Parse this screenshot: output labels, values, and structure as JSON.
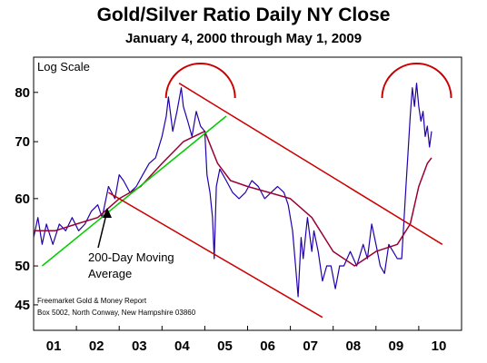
{
  "chart_data": {
    "type": "line",
    "title": "Gold/Silver Ratio Daily NY Close",
    "subtitle": "January 4, 2000 through May 1, 2009",
    "scale_label": "Log Scale",
    "y_scale": "log",
    "ylim": [
      42,
      88
    ],
    "y_ticks": [
      45,
      50,
      60,
      70,
      80
    ],
    "xlim": [
      2000.0,
      2010.0
    ],
    "x_ticks": [
      {
        "label": "01",
        "x": 2001.0
      },
      {
        "label": "02",
        "x": 2002.0
      },
      {
        "label": "03",
        "x": 2003.0
      },
      {
        "label": "04",
        "x": 2004.0
      },
      {
        "label": "05",
        "x": 2005.0
      },
      {
        "label": "06",
        "x": 2006.0
      },
      {
        "label": "07",
        "x": 2007.0
      },
      {
        "label": "08",
        "x": 2008.0
      },
      {
        "label": "09",
        "x": 2009.0
      },
      {
        "label": "10",
        "x": 2010.0
      }
    ],
    "grid": false,
    "series": [
      {
        "role": "ratio",
        "color": "#2200aa",
        "points": [
          [
            2000.0,
            54
          ],
          [
            2000.1,
            57
          ],
          [
            2000.2,
            53
          ],
          [
            2000.3,
            56
          ],
          [
            2000.45,
            53
          ],
          [
            2000.6,
            56
          ],
          [
            2000.75,
            55
          ],
          [
            2000.9,
            57
          ],
          [
            2001.05,
            55
          ],
          [
            2001.2,
            56
          ],
          [
            2001.35,
            58
          ],
          [
            2001.5,
            59
          ],
          [
            2001.6,
            57
          ],
          [
            2001.75,
            62
          ],
          [
            2001.9,
            60
          ],
          [
            2002.0,
            64
          ],
          [
            2002.1,
            63
          ],
          [
            2002.25,
            61
          ],
          [
            2002.4,
            62
          ],
          [
            2002.55,
            64
          ],
          [
            2002.7,
            66
          ],
          [
            2002.85,
            67
          ],
          [
            2003.0,
            71
          ],
          [
            2003.1,
            75
          ],
          [
            2003.15,
            79
          ],
          [
            2003.25,
            72
          ],
          [
            2003.35,
            76
          ],
          [
            2003.45,
            81
          ],
          [
            2003.5,
            77
          ],
          [
            2003.6,
            74
          ],
          [
            2003.7,
            71
          ],
          [
            2003.8,
            76
          ],
          [
            2003.9,
            73
          ],
          [
            2004.0,
            72
          ],
          [
            2004.05,
            64
          ],
          [
            2004.12,
            61
          ],
          [
            2004.18,
            57
          ],
          [
            2004.22,
            51
          ],
          [
            2004.27,
            62
          ],
          [
            2004.35,
            65
          ],
          [
            2004.5,
            63
          ],
          [
            2004.65,
            61
          ],
          [
            2004.8,
            60
          ],
          [
            2004.95,
            61
          ],
          [
            2005.1,
            63
          ],
          [
            2005.25,
            62
          ],
          [
            2005.4,
            60
          ],
          [
            2005.55,
            61
          ],
          [
            2005.7,
            62
          ],
          [
            2005.85,
            61
          ],
          [
            2005.95,
            59
          ],
          [
            2006.05,
            55
          ],
          [
            2006.12,
            50
          ],
          [
            2006.18,
            46
          ],
          [
            2006.25,
            54
          ],
          [
            2006.3,
            51
          ],
          [
            2006.4,
            57
          ],
          [
            2006.5,
            52
          ],
          [
            2006.55,
            55
          ],
          [
            2006.65,
            52
          ],
          [
            2006.75,
            48
          ],
          [
            2006.85,
            50
          ],
          [
            2006.95,
            50
          ],
          [
            2007.05,
            47
          ],
          [
            2007.15,
            50
          ],
          [
            2007.25,
            50
          ],
          [
            2007.4,
            52
          ],
          [
            2007.55,
            50
          ],
          [
            2007.7,
            53
          ],
          [
            2007.8,
            51
          ],
          [
            2007.9,
            56
          ],
          [
            2008.0,
            53
          ],
          [
            2008.1,
            50
          ],
          [
            2008.2,
            49
          ],
          [
            2008.3,
            53
          ],
          [
            2008.4,
            52
          ],
          [
            2008.5,
            51
          ],
          [
            2008.6,
            51
          ],
          [
            2008.65,
            56
          ],
          [
            2008.7,
            62
          ],
          [
            2008.75,
            68
          ],
          [
            2008.8,
            75
          ],
          [
            2008.85,
            81
          ],
          [
            2008.9,
            77
          ],
          [
            2008.95,
            82
          ],
          [
            2009.0,
            77
          ],
          [
            2009.05,
            74
          ],
          [
            2009.1,
            76
          ],
          [
            2009.15,
            71
          ],
          [
            2009.2,
            73
          ],
          [
            2009.25,
            69
          ],
          [
            2009.3,
            72
          ]
        ]
      },
      {
        "role": "moving_average",
        "color": "#990033",
        "points": [
          [
            2000.0,
            55
          ],
          [
            2000.5,
            55
          ],
          [
            2001.0,
            56
          ],
          [
            2001.5,
            57
          ],
          [
            2002.0,
            60
          ],
          [
            2002.5,
            62
          ],
          [
            2003.0,
            66
          ],
          [
            2003.5,
            70
          ],
          [
            2004.0,
            72
          ],
          [
            2004.3,
            66
          ],
          [
            2004.6,
            63
          ],
          [
            2005.0,
            62
          ],
          [
            2005.5,
            61
          ],
          [
            2006.0,
            60
          ],
          [
            2006.5,
            57
          ],
          [
            2007.0,
            52
          ],
          [
            2007.5,
            50
          ],
          [
            2008.0,
            52
          ],
          [
            2008.5,
            53
          ],
          [
            2008.8,
            56
          ],
          [
            2009.0,
            62
          ],
          [
            2009.2,
            66
          ],
          [
            2009.3,
            67
          ]
        ]
      },
      {
        "role": "uptrend",
        "color": "#00cc00",
        "points": [
          [
            2000.2,
            50
          ],
          [
            2004.5,
            75
          ]
        ]
      },
      {
        "role": "channel_upper",
        "color": "#cc0000",
        "points": [
          [
            2003.4,
            82
          ],
          [
            2009.55,
            53
          ]
        ]
      },
      {
        "role": "channel_lower",
        "color": "#cc0000",
        "points": [
          [
            2001.75,
            61
          ],
          [
            2006.75,
            43.5
          ]
        ]
      }
    ],
    "arcs": [
      {
        "x": 2003.9,
        "label": "top"
      },
      {
        "x": 2008.95,
        "label": "top"
      }
    ],
    "annotations": {
      "ma_label_line1": "200-Day Moving",
      "ma_label_line2": "Average",
      "source_line1": "Freemarket Gold & Money Report",
      "source_line2": "Box 5002, North Conway, New Hampshire 03860"
    },
    "colors": {
      "axis": "#000000",
      "arc": "#cc0000",
      "arrow": "#000000"
    }
  }
}
